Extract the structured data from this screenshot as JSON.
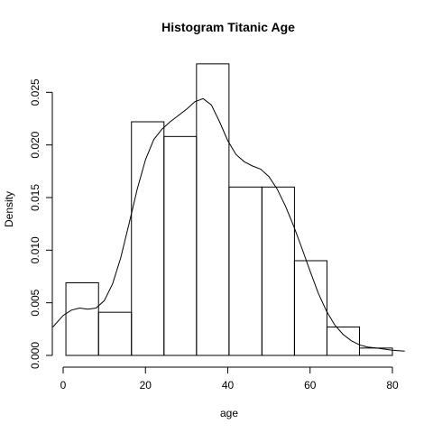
{
  "chart_data": {
    "type": "bar",
    "title": "Histogram Titanic Age",
    "xlabel": "age",
    "ylabel": "Density",
    "xlim": [
      0,
      83
    ],
    "ylim": [
      0,
      0.0282
    ],
    "x_ticks": [
      0,
      20,
      40,
      60,
      80
    ],
    "x_tick_labels": [
      "0",
      "20",
      "40",
      "60",
      "80"
    ],
    "y_ticks": [
      0.0,
      0.005,
      0.01,
      0.015,
      0.02,
      0.025
    ],
    "y_tick_labels": [
      "0.000",
      "0.005",
      "0.010",
      "0.015",
      "0.020",
      "0.025"
    ],
    "bins": [
      {
        "x0": 0.67,
        "x1": 8.6,
        "density": 0.0069
      },
      {
        "x0": 8.6,
        "x1": 16.6,
        "density": 0.0041
      },
      {
        "x0": 16.6,
        "x1": 24.5,
        "density": 0.0222
      },
      {
        "x0": 24.5,
        "x1": 32.4,
        "density": 0.0208
      },
      {
        "x0": 32.4,
        "x1": 40.3,
        "density": 0.0277
      },
      {
        "x0": 40.3,
        "x1": 48.3,
        "density": 0.016
      },
      {
        "x0": 48.3,
        "x1": 56.2,
        "density": 0.016
      },
      {
        "x0": 56.2,
        "x1": 64.1,
        "density": 0.009
      },
      {
        "x0": 64.1,
        "x1": 72.0,
        "density": 0.0027
      },
      {
        "x0": 72.0,
        "x1": 80.0,
        "density": 0.0007
      }
    ],
    "density_curve": {
      "x": [
        -2.5,
        0,
        2,
        4,
        6,
        8,
        10,
        12,
        14,
        16,
        18,
        20,
        22,
        24,
        26,
        28,
        30,
        32,
        34,
        36,
        38,
        40,
        42,
        44,
        46,
        48,
        50,
        52,
        54,
        56,
        58,
        60,
        62,
        64,
        66,
        68,
        70,
        72,
        74,
        76,
        78,
        80,
        83
      ],
      "y": [
        0.0027,
        0.0038,
        0.0043,
        0.0045,
        0.0044,
        0.0045,
        0.0052,
        0.0068,
        0.0093,
        0.0125,
        0.0158,
        0.0186,
        0.0205,
        0.0215,
        0.0222,
        0.0228,
        0.0234,
        0.0241,
        0.0244,
        0.0238,
        0.0222,
        0.0204,
        0.0191,
        0.0184,
        0.018,
        0.0177,
        0.017,
        0.0158,
        0.0142,
        0.0123,
        0.0102,
        0.008,
        0.0059,
        0.0042,
        0.0029,
        0.002,
        0.0014,
        0.001,
        0.0008,
        0.0007,
        0.0006,
        0.0005,
        0.0004
      ]
    }
  }
}
